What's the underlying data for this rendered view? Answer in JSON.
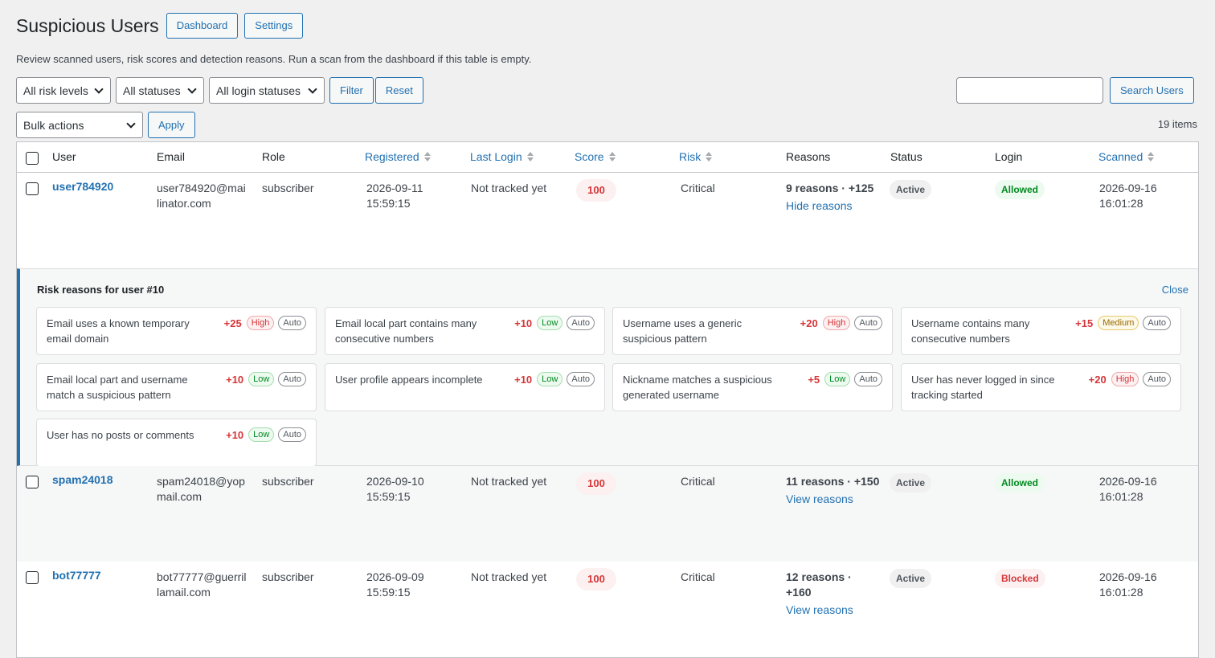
{
  "header": {
    "title": "Suspicious Users",
    "dashboard_label": "Dashboard",
    "settings_label": "Settings",
    "description": "Review scanned users, risk scores and detection reasons. Run a scan from the dashboard if this table is empty."
  },
  "filters": {
    "risk_level": "All risk levels",
    "status": "All statuses",
    "login_status": "All login statuses",
    "filter_label": "Filter",
    "reset_label": "Reset",
    "search_value": "",
    "search_label": "Search Users"
  },
  "bulk": {
    "action": "Bulk actions",
    "apply_label": "Apply",
    "items_count": "19 items"
  },
  "table": {
    "columns": {
      "user": "User",
      "email": "Email",
      "role": "Role",
      "registered": "Registered",
      "last_login": "Last Login",
      "score": "Score",
      "risk": "Risk",
      "reasons": "Reasons",
      "status": "Status",
      "login": "Login",
      "scanned": "Scanned"
    },
    "rows": [
      {
        "username": "user784920",
        "email_1": "user784920@mai",
        "email_2": "linator.com",
        "role": "subscriber",
        "registered_1": "2026-09-11",
        "registered_2": "15:59:15",
        "last_login": "Not tracked yet",
        "score": "100",
        "risk": "Critical",
        "reasons_summary": "9 reasons · +125",
        "reasons_link": "Hide reasons",
        "status": "Active",
        "login": "Allowed",
        "scanned_1": "2026-09-16",
        "scanned_2": "16:01:28"
      },
      {
        "username": "spam24018",
        "email_1": "spam24018@yop",
        "email_2": "mail.com",
        "role": "subscriber",
        "registered_1": "2026-09-10",
        "registered_2": "15:59:15",
        "last_login": "Not tracked yet",
        "score": "100",
        "risk": "Critical",
        "reasons_summary": "11 reasons · +150",
        "reasons_link": "View reasons",
        "status": "Active",
        "login": "Allowed",
        "scanned_1": "2026-09-16",
        "scanned_2": "16:01:28"
      },
      {
        "username": "bot77777",
        "email_1": "bot77777@guerril",
        "email_2": "lamail.com",
        "role": "subscriber",
        "registered_1": "2026-09-09",
        "registered_2": "15:59:15",
        "last_login": "Not tracked yet",
        "score": "100",
        "risk": "Critical",
        "reasons_summary_1": "12 reasons ·",
        "reasons_summary_2": "+160",
        "reasons_link": "View reasons",
        "status": "Active",
        "login": "Blocked",
        "scanned_1": "2026-09-16",
        "scanned_2": "16:01:28"
      }
    ]
  },
  "reasons_panel": {
    "title": "Risk reasons for user #10",
    "close_label": "Close",
    "auto_label": "Auto",
    "reasons": [
      {
        "text": "Email uses a known temporary email domain",
        "points": "+25",
        "severity": "High"
      },
      {
        "text": "Email local part contains many consecutive numbers",
        "points": "+10",
        "severity": "Low"
      },
      {
        "text": "Username uses a generic suspicious pattern",
        "points": "+20",
        "severity": "High"
      },
      {
        "text": "Username contains many consecutive numbers",
        "points": "+15",
        "severity": "Medium"
      },
      {
        "text": "Email local part and username match a suspicious pattern",
        "points": "+10",
        "severity": "Low"
      },
      {
        "text": "User profile appears incomplete",
        "points": "+10",
        "severity": "Low"
      },
      {
        "text": "Nickname matches a suspicious generated username",
        "points": "+5",
        "severity": "Low"
      },
      {
        "text": "User has never logged in since tracking started",
        "points": "+20",
        "severity": "High"
      },
      {
        "text": "User has no posts or comments",
        "points": "+10",
        "severity": "Low"
      }
    ]
  },
  "colors": {
    "accent": "#2271b1",
    "danger": "#d63638",
    "success": "#008a20",
    "warning": "#996800"
  }
}
